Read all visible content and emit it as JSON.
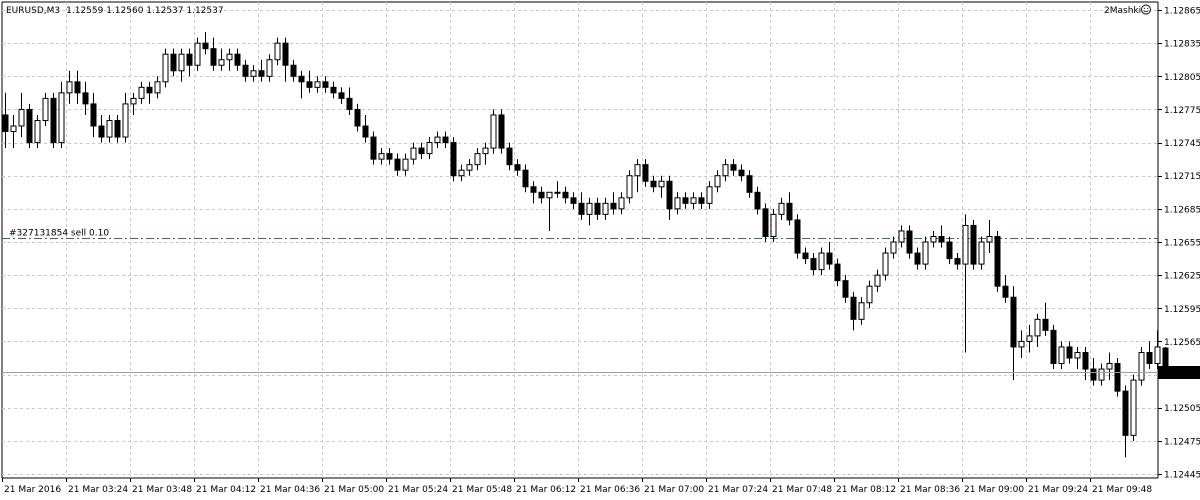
{
  "window": {
    "symbol": "EURUSD,M3",
    "ohlc": "1.12559 1.12560 1.12537 1.12537",
    "indicator_label": "2Mashki"
  },
  "order_line": {
    "label": "#327131854 sell 0.10",
    "price": 1.12659,
    "color": "#2e7d32"
  },
  "current_price": {
    "label": "1.12537",
    "value": 1.12537
  },
  "colors": {
    "background": "#ffffff",
    "grid": "#c8c8c8",
    "candle": "#000000",
    "bid_line": "#a0a0a0",
    "order_line": "#2e7d32"
  },
  "chart_data": {
    "type": "candlestick",
    "symbol": "EURUSD",
    "timeframe": "M3",
    "ylim": [
      1.1244,
      1.1287
    ],
    "yticks": [
      "1.12865",
      "1.12835",
      "1.12805",
      "1.12775",
      "1.12745",
      "1.12715",
      "1.12685",
      "1.12655",
      "1.12625",
      "1.12595",
      "1.12565",
      "1.12505",
      "1.12475",
      "1.12445"
    ],
    "xticks": [
      "21 Mar 2016",
      "21 Mar 03:24",
      "21 Mar 03:48",
      "21 Mar 04:12",
      "21 Mar 04:36",
      "21 Mar 05:00",
      "21 Mar 05:24",
      "21 Mar 05:48",
      "21 Mar 06:12",
      "21 Mar 06:36",
      "21 Mar 07:00",
      "21 Mar 07:24",
      "21 Mar 07:48",
      "21 Mar 08:12",
      "21 Mar 08:36",
      "21 Mar 09:00",
      "21 Mar 09:24",
      "21 Mar 09:48"
    ],
    "grid": true,
    "candles": [
      [
        1.1277,
        1.1279,
        1.1274,
        1.12755
      ],
      [
        1.12755,
        1.1277,
        1.1274,
        1.1276
      ],
      [
        1.1276,
        1.1279,
        1.1275,
        1.12775
      ],
      [
        1.12775,
        1.1278,
        1.1274,
        1.12745
      ],
      [
        1.12745,
        1.1277,
        1.1274,
        1.12765
      ],
      [
        1.12765,
        1.1279,
        1.1276,
        1.12785
      ],
      [
        1.12785,
        1.1279,
        1.1274,
        1.12745
      ],
      [
        1.12745,
        1.128,
        1.1274,
        1.1279
      ],
      [
        1.1279,
        1.1281,
        1.1278,
        1.128
      ],
      [
        1.128,
        1.1281,
        1.1278,
        1.1279
      ],
      [
        1.1279,
        1.128,
        1.1277,
        1.1278
      ],
      [
        1.1278,
        1.1279,
        1.1275,
        1.1276
      ],
      [
        1.1276,
        1.1277,
        1.12745,
        1.1275
      ],
      [
        1.1275,
        1.1277,
        1.12745,
        1.12765
      ],
      [
        1.12765,
        1.1277,
        1.12745,
        1.1275
      ],
      [
        1.1275,
        1.1279,
        1.12745,
        1.1278
      ],
      [
        1.1278,
        1.1279,
        1.1277,
        1.12785
      ],
      [
        1.12785,
        1.128,
        1.1278,
        1.12795
      ],
      [
        1.12795,
        1.128,
        1.1278,
        1.1279
      ],
      [
        1.1279,
        1.12805,
        1.12785,
        1.128
      ],
      [
        1.128,
        1.1283,
        1.12795,
        1.12825
      ],
      [
        1.12825,
        1.1283,
        1.12805,
        1.1281
      ],
      [
        1.1281,
        1.1283,
        1.128,
        1.12825
      ],
      [
        1.12825,
        1.1283,
        1.12805,
        1.12815
      ],
      [
        1.12815,
        1.1284,
        1.1281,
        1.12835
      ],
      [
        1.12835,
        1.12845,
        1.12825,
        1.1283
      ],
      [
        1.1283,
        1.1284,
        1.1281,
        1.12815
      ],
      [
        1.12815,
        1.1283,
        1.1281,
        1.1282
      ],
      [
        1.1282,
        1.1283,
        1.1281,
        1.12825
      ],
      [
        1.12825,
        1.1283,
        1.1281,
        1.12815
      ],
      [
        1.12815,
        1.1282,
        1.128,
        1.12805
      ],
      [
        1.12805,
        1.12815,
        1.128,
        1.1281
      ],
      [
        1.1281,
        1.1282,
        1.128,
        1.12805
      ],
      [
        1.12805,
        1.12825,
        1.128,
        1.1282
      ],
      [
        1.1282,
        1.1284,
        1.12815,
        1.12835
      ],
      [
        1.12835,
        1.1284,
        1.128,
        1.12815
      ],
      [
        1.12815,
        1.1282,
        1.128,
        1.12805
      ],
      [
        1.12805,
        1.1281,
        1.12785,
        1.128
      ],
      [
        1.128,
        1.1281,
        1.1279,
        1.12795
      ],
      [
        1.12795,
        1.12805,
        1.1279,
        1.128
      ],
      [
        1.128,
        1.12805,
        1.1279,
        1.12795
      ],
      [
        1.12795,
        1.128,
        1.12785,
        1.1279
      ],
      [
        1.1279,
        1.12795,
        1.1278,
        1.12785
      ],
      [
        1.12785,
        1.12795,
        1.1277,
        1.12775
      ],
      [
        1.12775,
        1.1278,
        1.12755,
        1.1276
      ],
      [
        1.1276,
        1.1277,
        1.12745,
        1.1275
      ],
      [
        1.1275,
        1.12755,
        1.12725,
        1.1273
      ],
      [
        1.1273,
        1.1274,
        1.12725,
        1.12735
      ],
      [
        1.12735,
        1.1274,
        1.12725,
        1.1273
      ],
      [
        1.1273,
        1.12735,
        1.12715,
        1.1272
      ],
      [
        1.1272,
        1.12735,
        1.12715,
        1.1273
      ],
      [
        1.1273,
        1.12745,
        1.12725,
        1.1274
      ],
      [
        1.1274,
        1.12745,
        1.1273,
        1.12735
      ],
      [
        1.12735,
        1.1275,
        1.1273,
        1.12745
      ],
      [
        1.12745,
        1.12755,
        1.1274,
        1.1275
      ],
      [
        1.1275,
        1.12755,
        1.1274,
        1.12745
      ],
      [
        1.12745,
        1.1275,
        1.1271,
        1.12715
      ],
      [
        1.12715,
        1.12725,
        1.1271,
        1.1272
      ],
      [
        1.1272,
        1.1273,
        1.12715,
        1.12725
      ],
      [
        1.12725,
        1.1274,
        1.1272,
        1.12735
      ],
      [
        1.12735,
        1.12745,
        1.12725,
        1.1274
      ],
      [
        1.1274,
        1.12775,
        1.12735,
        1.1277
      ],
      [
        1.1277,
        1.12775,
        1.12735,
        1.1274
      ],
      [
        1.1274,
        1.12745,
        1.1272,
        1.12725
      ],
      [
        1.12725,
        1.1273,
        1.12715,
        1.1272
      ],
      [
        1.1272,
        1.12725,
        1.127,
        1.12705
      ],
      [
        1.12705,
        1.1271,
        1.1269,
        1.127
      ],
      [
        1.127,
        1.12705,
        1.1269,
        1.12695
      ],
      [
        1.12695,
        1.127,
        1.12665,
        1.127
      ],
      [
        1.127,
        1.1271,
        1.12695,
        1.127
      ],
      [
        1.127,
        1.12705,
        1.1269,
        1.12695
      ],
      [
        1.12695,
        1.127,
        1.12685,
        1.1269
      ],
      [
        1.1269,
        1.127,
        1.12675,
        1.1268
      ],
      [
        1.1268,
        1.12695,
        1.1267,
        1.1269
      ],
      [
        1.1269,
        1.12695,
        1.12675,
        1.1268
      ],
      [
        1.1268,
        1.12695,
        1.12675,
        1.1269
      ],
      [
        1.1269,
        1.127,
        1.1268,
        1.12685
      ],
      [
        1.12685,
        1.127,
        1.1268,
        1.12695
      ],
      [
        1.12695,
        1.1272,
        1.1269,
        1.12715
      ],
      [
        1.12715,
        1.1273,
        1.127,
        1.12725
      ],
      [
        1.12725,
        1.1273,
        1.12705,
        1.1271
      ],
      [
        1.1271,
        1.12715,
        1.127,
        1.12705
      ],
      [
        1.12705,
        1.12715,
        1.12695,
        1.1271
      ],
      [
        1.1271,
        1.12715,
        1.12675,
        1.12685
      ],
      [
        1.12685,
        1.127,
        1.1268,
        1.12695
      ],
      [
        1.12695,
        1.127,
        1.12685,
        1.1269
      ],
      [
        1.1269,
        1.127,
        1.12685,
        1.12695
      ],
      [
        1.12695,
        1.127,
        1.12685,
        1.1269
      ],
      [
        1.1269,
        1.1271,
        1.12685,
        1.12705
      ],
      [
        1.12705,
        1.1272,
        1.127,
        1.12715
      ],
      [
        1.12715,
        1.1273,
        1.1271,
        1.12725
      ],
      [
        1.12725,
        1.1273,
        1.12715,
        1.1272
      ],
      [
        1.1272,
        1.12725,
        1.1271,
        1.12715
      ],
      [
        1.12715,
        1.1272,
        1.12695,
        1.127
      ],
      [
        1.127,
        1.12705,
        1.1268,
        1.12685
      ],
      [
        1.12685,
        1.1269,
        1.12655,
        1.1266
      ],
      [
        1.1266,
        1.12685,
        1.12655,
        1.1268
      ],
      [
        1.1268,
        1.12695,
        1.12675,
        1.1269
      ],
      [
        1.1269,
        1.127,
        1.1267,
        1.12675
      ],
      [
        1.12675,
        1.1268,
        1.1264,
        1.12645
      ],
      [
        1.12645,
        1.1265,
        1.12635,
        1.1264
      ],
      [
        1.1264,
        1.12645,
        1.12625,
        1.1263
      ],
      [
        1.1263,
        1.1265,
        1.12625,
        1.12645
      ],
      [
        1.12645,
        1.12655,
        1.1263,
        1.12635
      ],
      [
        1.12635,
        1.1264,
        1.12615,
        1.1262
      ],
      [
        1.1262,
        1.12625,
        1.126,
        1.12605
      ],
      [
        1.12605,
        1.1261,
        1.12575,
        1.12585
      ],
      [
        1.12585,
        1.12605,
        1.1258,
        1.126
      ],
      [
        1.126,
        1.1262,
        1.12595,
        1.12615
      ],
      [
        1.12615,
        1.1263,
        1.1261,
        1.12625
      ],
      [
        1.12625,
        1.1265,
        1.1262,
        1.12645
      ],
      [
        1.12645,
        1.1266,
        1.1264,
        1.12655
      ],
      [
        1.12655,
        1.1267,
        1.1265,
        1.12665
      ],
      [
        1.12665,
        1.1267,
        1.1264,
        1.12645
      ],
      [
        1.12645,
        1.1265,
        1.1263,
        1.12635
      ],
      [
        1.12635,
        1.1266,
        1.1263,
        1.12655
      ],
      [
        1.12655,
        1.12665,
        1.1265,
        1.1266
      ],
      [
        1.1266,
        1.1267,
        1.1265,
        1.12655
      ],
      [
        1.12655,
        1.1266,
        1.12635,
        1.1264
      ],
      [
        1.1264,
        1.12645,
        1.1263,
        1.12635
      ],
      [
        1.12635,
        1.1268,
        1.12555,
        1.1267
      ],
      [
        1.1267,
        1.12675,
        1.1263,
        1.12635
      ],
      [
        1.12635,
        1.1266,
        1.1263,
        1.12655
      ],
      [
        1.12655,
        1.12675,
        1.12645,
        1.1266
      ],
      [
        1.1266,
        1.12665,
        1.1261,
        1.12615
      ],
      [
        1.12615,
        1.12625,
        1.126,
        1.12605
      ],
      [
        1.12605,
        1.12615,
        1.1253,
        1.1256
      ],
      [
        1.1256,
        1.12575,
        1.1255,
        1.12565
      ],
      [
        1.12565,
        1.1258,
        1.12555,
        1.1257
      ],
      [
        1.1257,
        1.1259,
        1.1256,
        1.12585
      ],
      [
        1.12585,
        1.126,
        1.1257,
        1.12575
      ],
      [
        1.12575,
        1.1258,
        1.1254,
        1.12545
      ],
      [
        1.12545,
        1.12565,
        1.1254,
        1.1256
      ],
      [
        1.1256,
        1.12565,
        1.12545,
        1.1255
      ],
      [
        1.1255,
        1.1256,
        1.1254,
        1.12555
      ],
      [
        1.12555,
        1.1256,
        1.1253,
        1.1254
      ],
      [
        1.1254,
        1.1255,
        1.12525,
        1.1253
      ],
      [
        1.1253,
        1.12545,
        1.12525,
        1.1254
      ],
      [
        1.1254,
        1.12555,
        1.1253,
        1.12545
      ],
      [
        1.12545,
        1.1255,
        1.12515,
        1.1252
      ],
      [
        1.1252,
        1.12525,
        1.1246,
        1.1248
      ],
      [
        1.1248,
        1.12535,
        1.12475,
        1.1253
      ],
      [
        1.1253,
        1.1256,
        1.12525,
        1.12555
      ],
      [
        1.12555,
        1.12565,
        1.1254,
        1.12545
      ],
      [
        1.12545,
        1.12575,
        1.1254,
        1.1256
      ],
      [
        1.12559,
        1.1256,
        1.12537,
        1.12537
      ]
    ]
  }
}
